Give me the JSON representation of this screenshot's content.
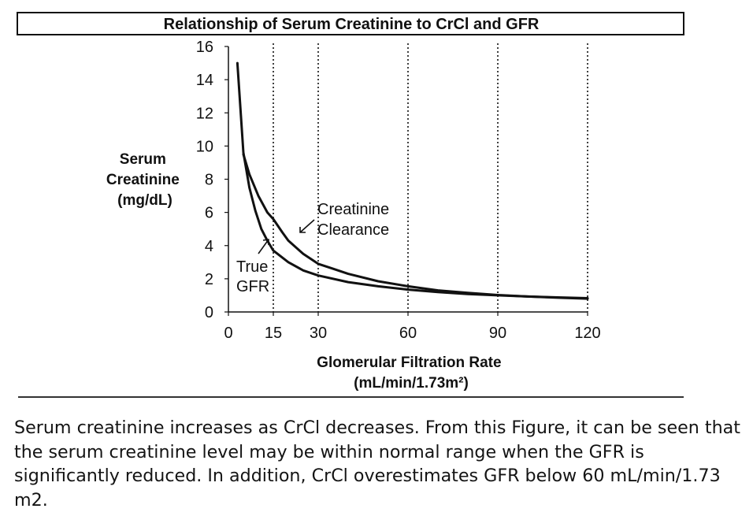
{
  "colors": {
    "background": "#ffffff",
    "ink": "#111111",
    "caption_text": "#141414"
  },
  "chart_data": {
    "type": "line",
    "title": "Relationship of Serum Creatinine to CrCl and GFR",
    "ylabel_lines": [
      "Serum",
      "Creatinine",
      "(mg/dL)"
    ],
    "xlabel_lines": [
      "Glomerular Filtration Rate",
      "(mL/min/1.73m²)"
    ],
    "xlim": [
      0,
      120
    ],
    "ylim": [
      0,
      16
    ],
    "xticks": [
      "0",
      "15",
      "30",
      "60",
      "90",
      "120"
    ],
    "xtick_values": [
      0,
      15,
      30,
      60,
      90,
      120
    ],
    "yticks": [
      "0",
      "2",
      "4",
      "6",
      "8",
      "10",
      "12",
      "14",
      "16"
    ],
    "ytick_values": [
      0,
      2,
      4,
      6,
      8,
      10,
      12,
      14,
      16
    ],
    "reference_lines_x": [
      15,
      30,
      60,
      90,
      120
    ],
    "grid": false,
    "annotations": [
      {
        "lines": [
          "Creatinine",
          "Clearance"
        ],
        "target_series": "crcl"
      },
      {
        "lines": [
          "True",
          "GFR"
        ],
        "target_series": "gfr"
      }
    ],
    "series": [
      {
        "id": "gfr",
        "x": [
          3,
          5,
          7,
          9,
          11,
          13,
          15,
          20,
          25,
          30,
          40,
          50,
          60,
          70,
          80,
          90,
          100,
          110,
          120
        ],
        "y": [
          15,
          9.6,
          7.5,
          6.1,
          5.0,
          4.3,
          3.7,
          3.0,
          2.5,
          2.2,
          1.8,
          1.55,
          1.35,
          1.2,
          1.08,
          1.0,
          0.93,
          0.88,
          0.83
        ]
      },
      {
        "id": "crcl",
        "x": [
          5,
          7,
          10,
          13,
          15,
          18,
          20,
          25,
          30,
          35,
          40,
          50,
          60,
          70,
          80,
          90,
          100,
          110,
          120
        ],
        "y": [
          9.5,
          8.3,
          7.0,
          6.0,
          5.6,
          4.8,
          4.3,
          3.5,
          2.9,
          2.6,
          2.3,
          1.85,
          1.55,
          1.3,
          1.15,
          1.02,
          0.93,
          0.86,
          0.8
        ]
      }
    ]
  },
  "caption": "Serum creatinine increases as CrCl decreases. From this Figure, it can be seen that the serum creatinine level may be within normal range when the GFR is significantly reduced. In addition, CrCl overestimates GFR below 60 mL/min/1.73 m2."
}
